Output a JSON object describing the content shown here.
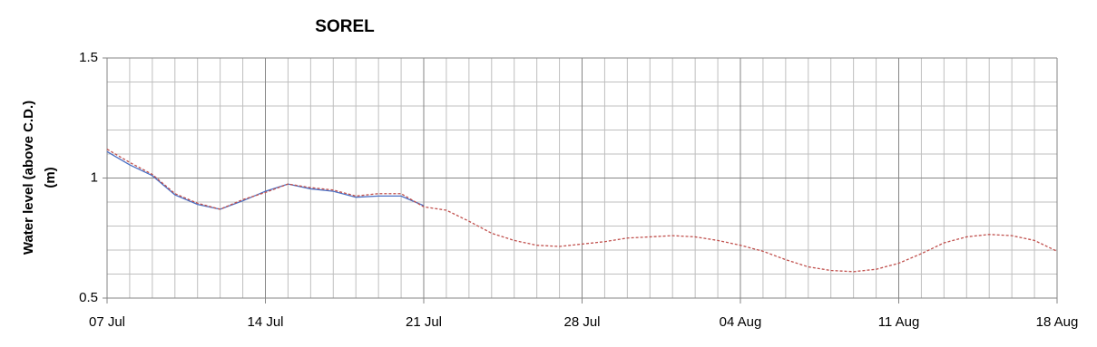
{
  "chart_data": {
    "type": "line",
    "title": "SOREL",
    "ylabel": [
      "Water level (above C.D.)",
      "(m)"
    ],
    "categories": [
      "07 Jul",
      null,
      null,
      null,
      null,
      null,
      null,
      "14 Jul",
      null,
      null,
      null,
      null,
      null,
      null,
      "21 Jul",
      null,
      null,
      null,
      null,
      null,
      null,
      "28 Jul",
      null,
      null,
      null,
      null,
      null,
      null,
      "04 Aug",
      null,
      null,
      null,
      null,
      null,
      null,
      "11 Aug",
      null,
      null,
      null,
      null,
      null,
      null,
      "18 Aug"
    ],
    "series": [
      {
        "color": "#4a6fc4",
        "dash": false,
        "values": [
          1.11,
          1.055,
          1.01,
          0.93,
          0.89,
          0.87,
          0.905,
          0.945,
          0.975,
          0.955,
          0.945,
          0.92,
          0.925,
          0.925,
          0.885,
          null,
          null,
          null,
          null,
          null,
          null,
          null,
          null,
          null,
          null,
          null,
          null,
          null,
          null,
          null,
          null,
          null,
          null,
          null,
          null,
          null,
          null,
          null,
          null,
          null,
          null,
          null,
          null
        ]
      },
      {
        "color": "#c0504d",
        "dash": true,
        "values": [
          1.12,
          1.065,
          1.015,
          0.935,
          0.895,
          0.87,
          0.91,
          0.94,
          0.975,
          0.96,
          0.95,
          0.925,
          0.935,
          0.935,
          0.88,
          0.866,
          0.82,
          0.77,
          0.74,
          0.72,
          0.715,
          0.725,
          0.735,
          0.75,
          0.755,
          0.76,
          0.755,
          0.74,
          0.72,
          0.695,
          0.66,
          0.63,
          0.615,
          0.61,
          0.62,
          0.645,
          0.685,
          0.73,
          0.755,
          0.765,
          0.76,
          0.74,
          0.695
        ]
      }
    ],
    "ylim": [
      0.5,
      1.5
    ],
    "yticks": [
      0.5,
      1,
      1.5
    ],
    "y_minor_grid": [
      0.6,
      0.7,
      0.8,
      0.9,
      1.1,
      1.2,
      1.3,
      1.4
    ],
    "grid": true
  }
}
